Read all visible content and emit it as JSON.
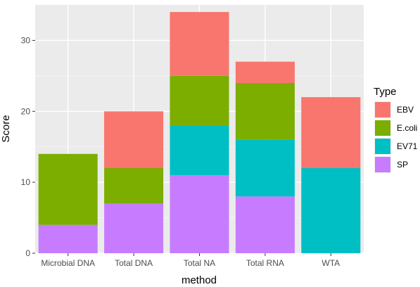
{
  "chart_data": {
    "type": "bar",
    "stacked": true,
    "title": "",
    "xlabel": "method",
    "ylabel": "Score",
    "categories": [
      "Microbial DNA",
      "Total DNA",
      "Total NA",
      "Total RNA",
      "WTA"
    ],
    "ylim": [
      0,
      35
    ],
    "yticks": [
      0,
      10,
      20,
      30
    ],
    "grid": true,
    "legend": {
      "title": "Type",
      "position": "right"
    },
    "series": [
      {
        "name": "SP",
        "color": "#C77CFF",
        "values": [
          4,
          7,
          11,
          8,
          0
        ]
      },
      {
        "name": "EV71",
        "color": "#00BFC4",
        "values": [
          0,
          0,
          7,
          8,
          12
        ]
      },
      {
        "name": "E.coli",
        "color": "#7CAE00",
        "values": [
          10,
          5,
          7,
          8,
          0
        ]
      },
      {
        "name": "EBV",
        "color": "#F8766D",
        "values": [
          0,
          8,
          9,
          3,
          10
        ]
      }
    ],
    "legend_order": [
      "EBV",
      "E.coli",
      "EV71",
      "SP"
    ]
  }
}
